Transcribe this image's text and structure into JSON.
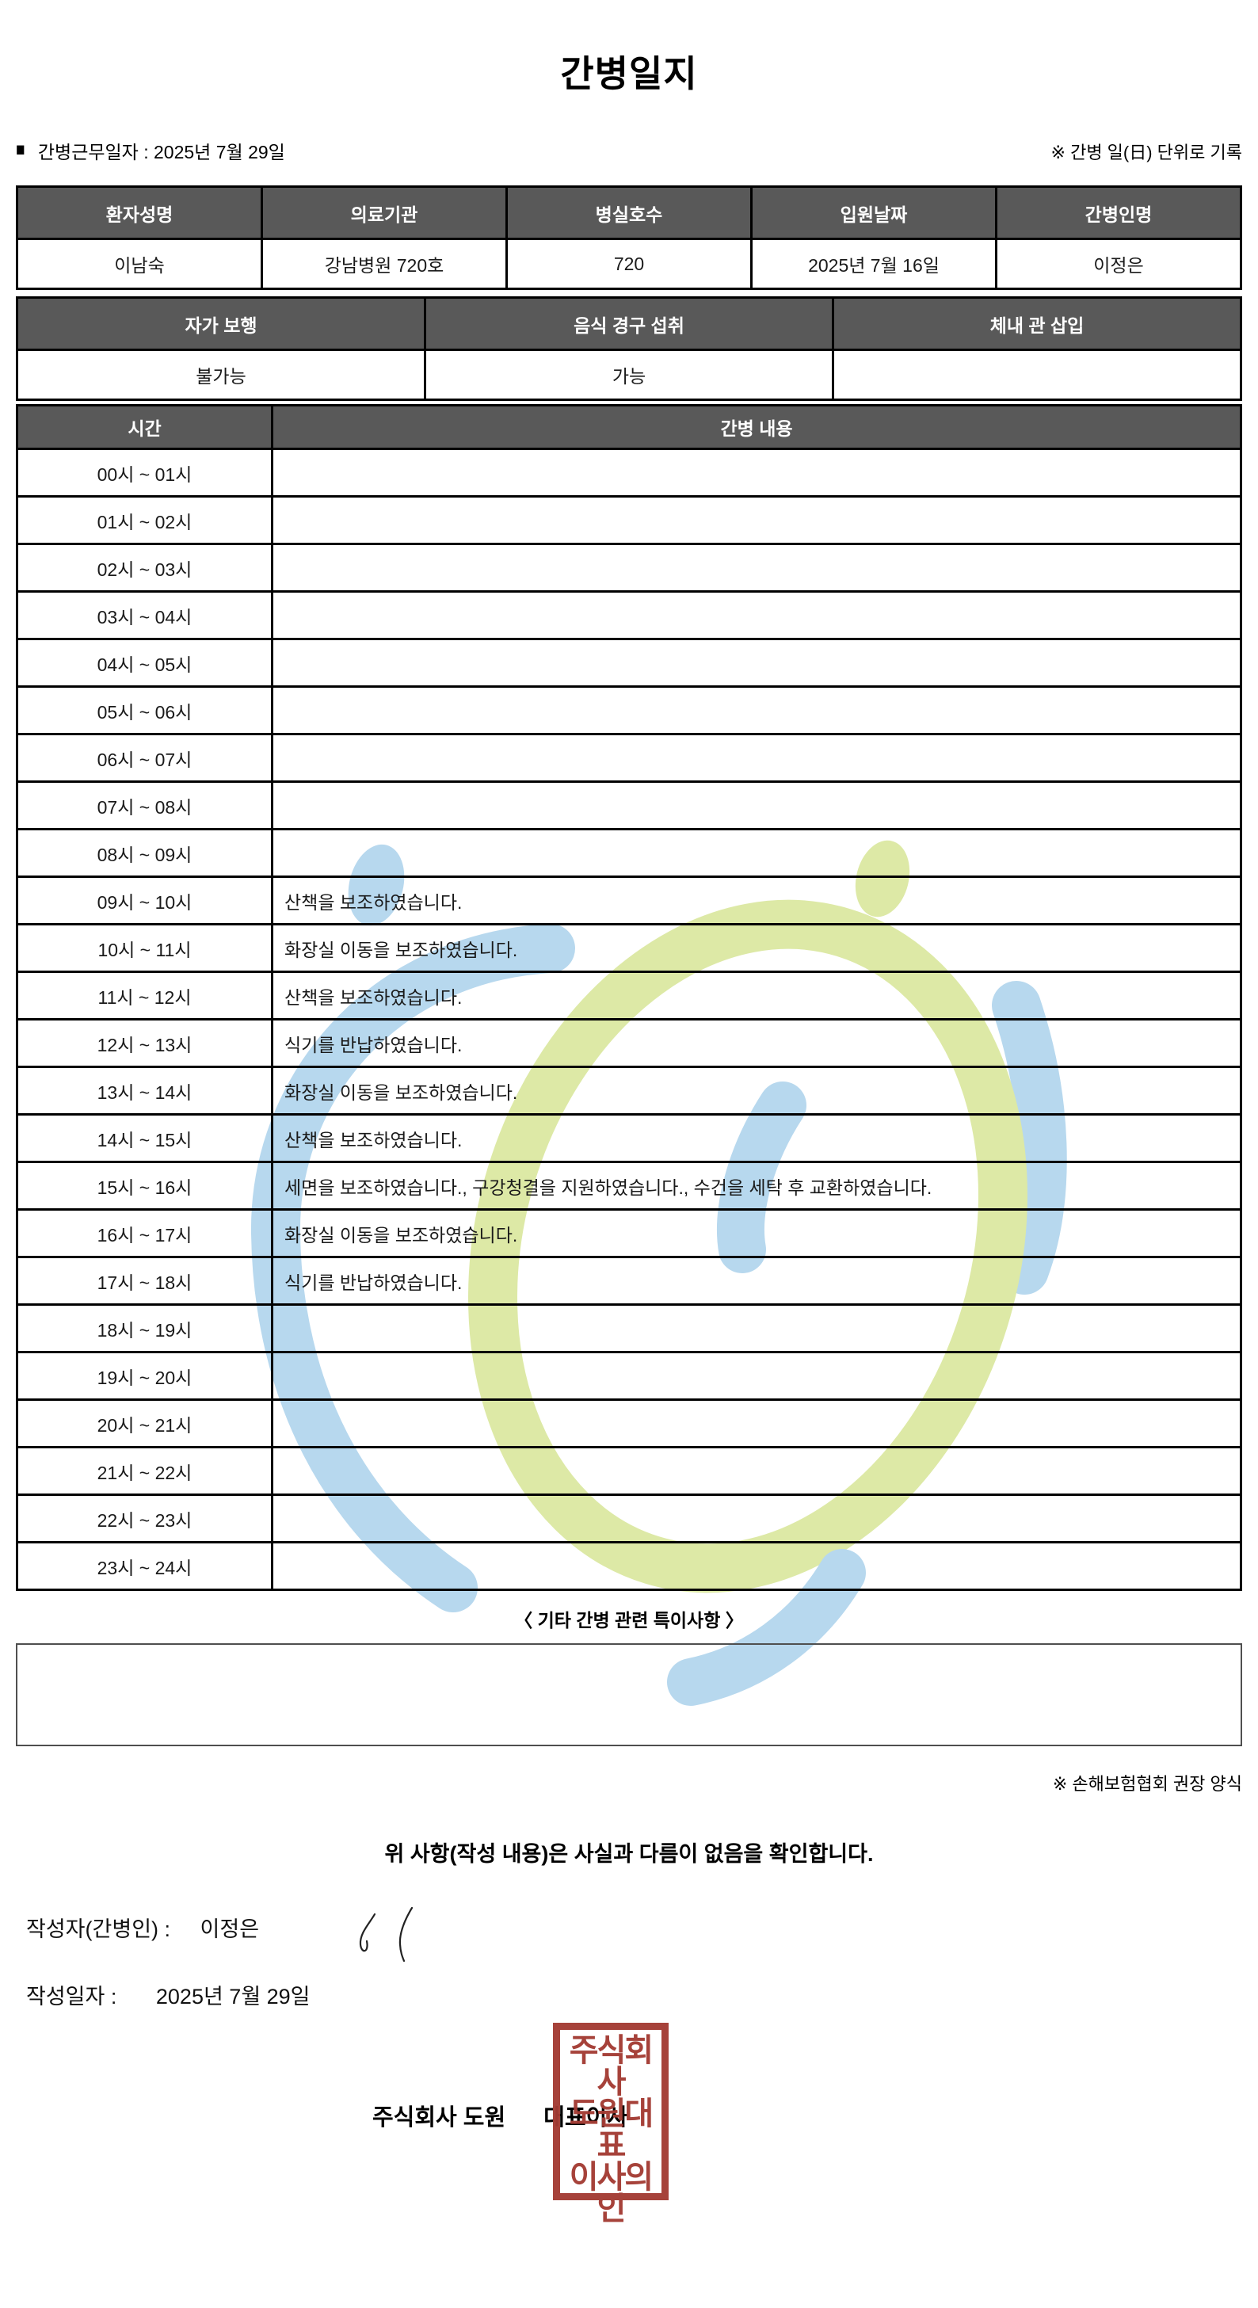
{
  "title": "간병일지",
  "meta": {
    "bullet": "■",
    "work_date_label": "간병근무일자  :",
    "work_date_value": "2025년 7월 29일",
    "unit_note": "※ 간병 일(日) 단위로 기록"
  },
  "patient_table": {
    "headers": [
      "환자성명",
      "의료기관",
      "병실호수",
      "입원날짜",
      "간병인명"
    ],
    "values": [
      "이남숙",
      "강남병원 720호",
      "720",
      "2025년 7월 16일",
      "이정은"
    ]
  },
  "status_table": {
    "headers": [
      "자가 보행",
      "음식 경구 섭취",
      "체내 관 삽입"
    ],
    "values": [
      "불가능",
      "가능",
      ""
    ]
  },
  "care_table": {
    "headers": [
      "시간",
      "간병 내용"
    ],
    "rows": [
      {
        "time": "00시 ~ 01시",
        "content": ""
      },
      {
        "time": "01시 ~ 02시",
        "content": ""
      },
      {
        "time": "02시 ~ 03시",
        "content": ""
      },
      {
        "time": "03시 ~ 04시",
        "content": ""
      },
      {
        "time": "04시 ~ 05시",
        "content": ""
      },
      {
        "time": "05시 ~ 06시",
        "content": ""
      },
      {
        "time": "06시 ~ 07시",
        "content": ""
      },
      {
        "time": "07시 ~ 08시",
        "content": ""
      },
      {
        "time": "08시 ~ 09시",
        "content": ""
      },
      {
        "time": "09시 ~ 10시",
        "content": "산책을 보조하였습니다."
      },
      {
        "time": "10시 ~ 11시",
        "content": "화장실 이동을 보조하였습니다."
      },
      {
        "time": "11시 ~ 12시",
        "content": "산책을 보조하였습니다."
      },
      {
        "time": "12시 ~ 13시",
        "content": "식기를 반납하였습니다."
      },
      {
        "time": "13시 ~ 14시",
        "content": "화장실 이동을 보조하였습니다."
      },
      {
        "time": "14시 ~ 15시",
        "content": "산책을 보조하였습니다."
      },
      {
        "time": "15시 ~ 16시",
        "content": "세면을 보조하였습니다., 구강청결을 지원하였습니다., 수건을 세탁 후 교환하였습니다."
      },
      {
        "time": "16시 ~ 17시",
        "content": "화장실 이동을 보조하였습니다."
      },
      {
        "time": "17시 ~ 18시",
        "content": "식기를 반납하였습니다."
      },
      {
        "time": "18시 ~ 19시",
        "content": ""
      },
      {
        "time": "19시 ~ 20시",
        "content": ""
      },
      {
        "time": "20시 ~ 21시",
        "content": ""
      },
      {
        "time": "21시 ~ 22시",
        "content": ""
      },
      {
        "time": "22시 ~ 23시",
        "content": ""
      },
      {
        "time": "23시 ~ 24시",
        "content": ""
      }
    ]
  },
  "notes": {
    "heading": "〈 기타 간병 관련 특이사항 〉",
    "content": "",
    "form_note": "※ 손해보험협회 권장 양식"
  },
  "footer": {
    "confirmation": "위 사항(작성 내용)은 사실과 다름이 없음을 확인합니다.",
    "writer_label": "작성자(간병인) :",
    "writer_name": "이정은",
    "write_date_label": "작성일자 :",
    "write_date_value": "2025년 7월 29일",
    "company": "주식회사 도원",
    "role": "대표이사",
    "stamp_lines": [
      "주식회사",
      "도원대표",
      "이사의인"
    ]
  },
  "colors": {
    "table_header_bg": "#595959",
    "table_header_text": "#ffffff",
    "table_border": "#000000",
    "stamp_red": "#a33b33",
    "watermark_blue": "#b7d8ee",
    "watermark_green": "#dde9a6"
  }
}
